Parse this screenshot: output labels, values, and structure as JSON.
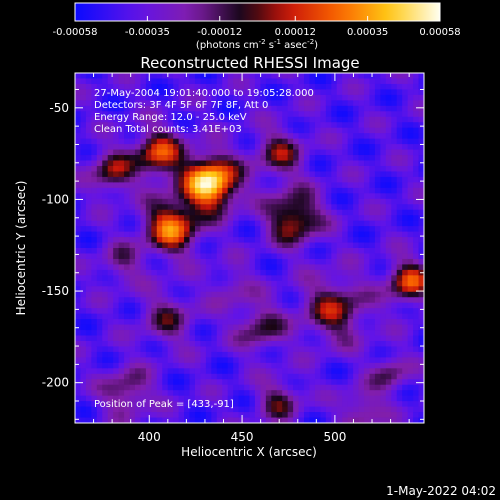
{
  "chart_data": {
    "type": "heatmap",
    "title": "Reconstructed RHESSI Image",
    "xlabel": "Heliocentric X (arcsec)",
    "ylabel": "Heliocentric Y (arcsec)",
    "xlim": [
      360,
      548
    ],
    "ylim": [
      -222,
      -31
    ],
    "x_ticks": [
      400,
      450,
      500
    ],
    "y_ticks": [
      -50,
      -100,
      -150,
      -200
    ],
    "colorbar": {
      "ticks": [
        "-0.00058",
        "-0.00035",
        "-0.00012",
        "0.00012",
        "0.00035",
        "0.00058"
      ],
      "range": [
        -0.00058,
        0.00058
      ],
      "units_prefix": "(photons cm",
      "units_exp1": "-2",
      "units_mid": " s",
      "units_exp2": "-1",
      "units_mid2": " asec",
      "units_exp3": "-2",
      "units_suffix": ")"
    },
    "annotations": {
      "time": "27-May-2004 19:01:40.000 to 19:05:28.000",
      "detectors": "Detectors: 3F 4F 5F 6F 7F 8F, Att 0",
      "energy": "Energy Range: 12.0 - 25.0 keV",
      "clean": "Clean     Total counts: 3.41E+03",
      "peak": "Position of Peak = [433,-91]"
    },
    "peak": {
      "x": 433,
      "y": -91
    },
    "footer_date": "1-May-2022 04:02"
  }
}
